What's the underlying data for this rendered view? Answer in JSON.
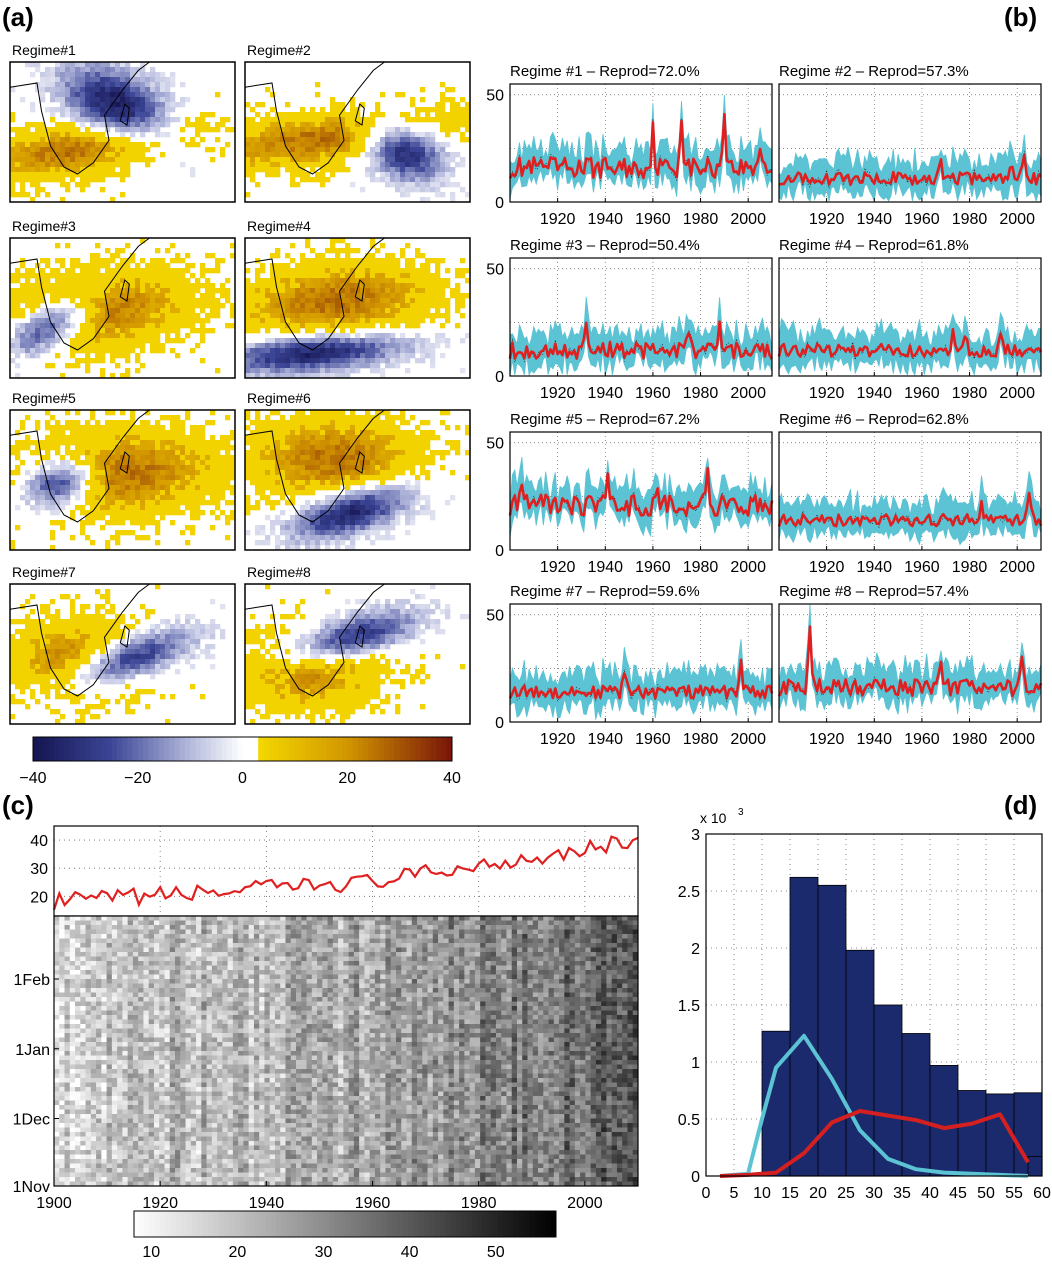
{
  "panels": {
    "a": "(a)",
    "b": "(b)",
    "c": "(c)",
    "d": "(d)"
  },
  "colors": {
    "ts_spread": "#5bc3d3",
    "ts_mean": "#e02020",
    "hist_bar": "#1a2a6c",
    "hist_cyan": "#5bc3d3",
    "hist_red": "#d42020",
    "land_yellow": "#f2d300",
    "coast": "#000000",
    "grid": "#666666"
  },
  "map_panel": {
    "regimes": [
      "Regime#1",
      "Regime#2",
      "Regime#3",
      "Regime#4",
      "Regime#5",
      "Regime#6",
      "Regime#7",
      "Regime#8"
    ],
    "colorbar": {
      "ticks": [
        "−40",
        "−20",
        "0",
        "20",
        "40"
      ],
      "tick_values": [
        -40,
        -20,
        0,
        20,
        40
      ],
      "range": [
        -40,
        40
      ]
    }
  },
  "chart_data": [
    {
      "id": "b",
      "type": "line",
      "x_range": [
        1900,
        2010
      ],
      "xticks": [
        "1920",
        "1940",
        "1960",
        "1980",
        "2000"
      ],
      "xtick_values": [
        1920,
        1940,
        1960,
        1980,
        2000
      ],
      "ylim": [
        0,
        55
      ],
      "yticks": [
        "0",
        "50"
      ],
      "ytick_values": [
        0,
        50
      ],
      "grid": true,
      "subplots": [
        {
          "title": "Regime #1 – Reprod=72.0%",
          "mean_level": 16,
          "variability": 5,
          "peaks": [
            [
              1960,
              33
            ],
            [
              1972,
              40
            ],
            [
              1990,
              44
            ],
            [
              2005,
              28
            ]
          ]
        },
        {
          "title": "Regime #2 – Reprod=57.3%",
          "mean_level": 11,
          "variability": 3,
          "peaks": [
            [
              1968,
              20
            ],
            [
              1998,
              18
            ],
            [
              2003,
              24
            ]
          ]
        },
        {
          "title": "Regime #3 – Reprod=50.4%",
          "mean_level": 12,
          "variability": 4,
          "peaks": [
            [
              1932,
              26
            ],
            [
              1975,
              22
            ],
            [
              1988,
              25
            ]
          ]
        },
        {
          "title": "Regime #4 – Reprod=61.8%",
          "mean_level": 12,
          "variability": 3,
          "peaks": [
            [
              1973,
              22
            ],
            [
              1978,
              20
            ],
            [
              1993,
              18
            ]
          ]
        },
        {
          "title": "Regime #5 – Reprod=67.2%",
          "mean_level": 21,
          "variability": 5,
          "peaks": [
            [
              1905,
              30
            ],
            [
              1941,
              32
            ],
            [
              1962,
              28
            ],
            [
              1983,
              35
            ]
          ]
        },
        {
          "title": "Regime #6 – Reprod=62.8%",
          "mean_level": 14,
          "variability": 3,
          "peaks": [
            [
              1985,
              22
            ],
            [
              2005,
              24
            ]
          ]
        },
        {
          "title": "Regime #7 – Reprod=59.6%",
          "mean_level": 14,
          "variability": 3,
          "peaks": [
            [
              1948,
              23
            ],
            [
              1997,
              28
            ]
          ]
        },
        {
          "title": "Regime #8 – Reprod=57.4%",
          "mean_level": 16,
          "variability": 4,
          "peaks": [
            [
              1913,
              42
            ],
            [
              1968,
              25
            ],
            [
              2002,
              30
            ]
          ]
        }
      ]
    },
    {
      "id": "c_top",
      "type": "line",
      "x_range": [
        1900,
        2010
      ],
      "ylim": [
        13,
        45
      ],
      "yticks": [
        "20",
        "30",
        "40"
      ],
      "ytick_values": [
        20,
        30,
        40
      ],
      "series": [
        {
          "start": 1900,
          "start_value": 18,
          "end": 2010,
          "end_value": 40
        }
      ],
      "grid": true
    },
    {
      "id": "c_heatmap",
      "type": "heatmap",
      "x_range": [
        1900,
        2010
      ],
      "xticks": [
        "1900",
        "1920",
        "1940",
        "1960",
        "1980",
        "2000"
      ],
      "xtick_values": [
        1900,
        1920,
        1940,
        1960,
        1980,
        2000
      ],
      "yticks": [
        "1Nov",
        "1Dec",
        "1Jan",
        "1Feb"
      ],
      "ytick_days": [
        0,
        30,
        61,
        92
      ],
      "y_days": 120,
      "value_start": 18,
      "value_end": 40,
      "colorbar": {
        "ticks": [
          "10",
          "20",
          "30",
          "40",
          "50"
        ],
        "tick_values": [
          10,
          20,
          30,
          40,
          50
        ],
        "range": [
          8,
          57
        ]
      }
    },
    {
      "id": "d",
      "type": "bar",
      "multiplier_label": "x 10",
      "multiplier_exp": "3",
      "bin_edges": [
        0,
        5,
        10,
        15,
        20,
        25,
        30,
        35,
        40,
        45,
        50,
        55,
        60
      ],
      "values": [
        0,
        0.02,
        1.27,
        2.62,
        2.55,
        1.98,
        1.5,
        1.25,
        0.97,
        0.75,
        0.72,
        0.73,
        0.17
      ],
      "value_edges_start": [
        0,
        5,
        10,
        15,
        20,
        25,
        30,
        35,
        40,
        45,
        50,
        55,
        57.5
      ],
      "xlim": [
        0,
        60
      ],
      "xticks": [
        "0",
        "5",
        "10",
        "15",
        "20",
        "25",
        "30",
        "35",
        "40",
        "45",
        "50",
        "55",
        "60"
      ],
      "xtick_values": [
        0,
        5,
        10,
        15,
        20,
        25,
        30,
        35,
        40,
        45,
        50,
        55,
        60
      ],
      "ylim": [
        0,
        3
      ],
      "yticks": [
        "0",
        "0.5",
        "1",
        "1.5",
        "2",
        "2.5",
        "3"
      ],
      "ytick_values": [
        0,
        0.5,
        1,
        1.5,
        2,
        2.5,
        3
      ],
      "cyan_curve": {
        "x": [
          2.5,
          7.5,
          10,
          12.5,
          17.5,
          22.5,
          27.5,
          32.5,
          37.5,
          42.5,
          47.5,
          52.5,
          57.5
        ],
        "y": [
          0,
          0.02,
          0.5,
          0.95,
          1.23,
          0.85,
          0.4,
          0.15,
          0.06,
          0.03,
          0.02,
          0.01,
          0
        ]
      },
      "red_curve": {
        "x": [
          2.5,
          7.5,
          12.5,
          17.5,
          22.5,
          27.5,
          32.5,
          37.5,
          42.5,
          47.5,
          52.5,
          57.5
        ],
        "y": [
          0,
          0.01,
          0.03,
          0.2,
          0.47,
          0.57,
          0.53,
          0.49,
          0.42,
          0.46,
          0.54,
          0.12
        ]
      },
      "grid": true
    }
  ]
}
